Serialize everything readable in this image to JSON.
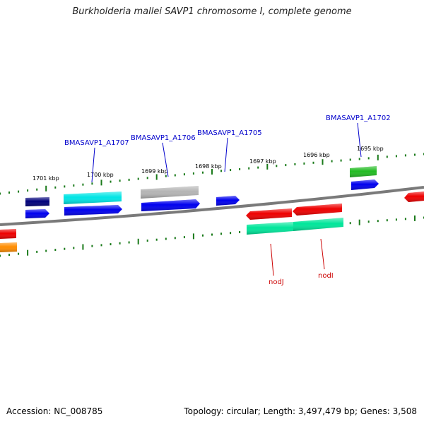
{
  "title": "Burkholderia mallei SAVP1 chromosome I, complete genome",
  "footer": {
    "accession": "Accession: NC_008785",
    "summary": "Topology: circular; Length: 3,497,479 bp; Genes: 3,508"
  },
  "colors": {
    "backbone": "#7a7a7a",
    "tick": "#1a7a1a",
    "gene_label_top": "#0000cc",
    "gene_label_bottom": "#cc0000",
    "navy": "#00007a",
    "blue": "#0000ee",
    "cyan": "#00e5e5",
    "gray": "#b4b4b4",
    "red": "#ee0000",
    "green": "#22bb22",
    "mint": "#00e69a",
    "orange": "#ff8c00"
  },
  "axis": {
    "unit": "kbp",
    "ticks": [
      "1701 kbp",
      "1700 kbp",
      "1699 kbp",
      "1698 kbp",
      "1697 kbp",
      "1696 kbp",
      "1695 kbp"
    ]
  },
  "features": [
    {
      "color": "navy"
    },
    {
      "color": "blue"
    },
    {
      "color": "cyan"
    },
    {
      "color": "blue"
    },
    {
      "color": "gray"
    },
    {
      "color": "blue"
    },
    {
      "color": "blue"
    },
    {
      "color": "green"
    },
    {
      "color": "blue"
    },
    {
      "color": "red"
    },
    {
      "color": "red"
    },
    {
      "color": "mint"
    },
    {
      "color": "mint"
    },
    {
      "color": "red"
    },
    {
      "color": "red"
    },
    {
      "color": "orange"
    }
  ],
  "gene_labels_top": [
    "BMASAVP1_A1707",
    "BMASAVP1_A1706",
    "BMASAVP1_A1705",
    "BMASAVP1_A1702"
  ],
  "gene_labels_bottom": [
    "nodJ",
    "nodI"
  ]
}
